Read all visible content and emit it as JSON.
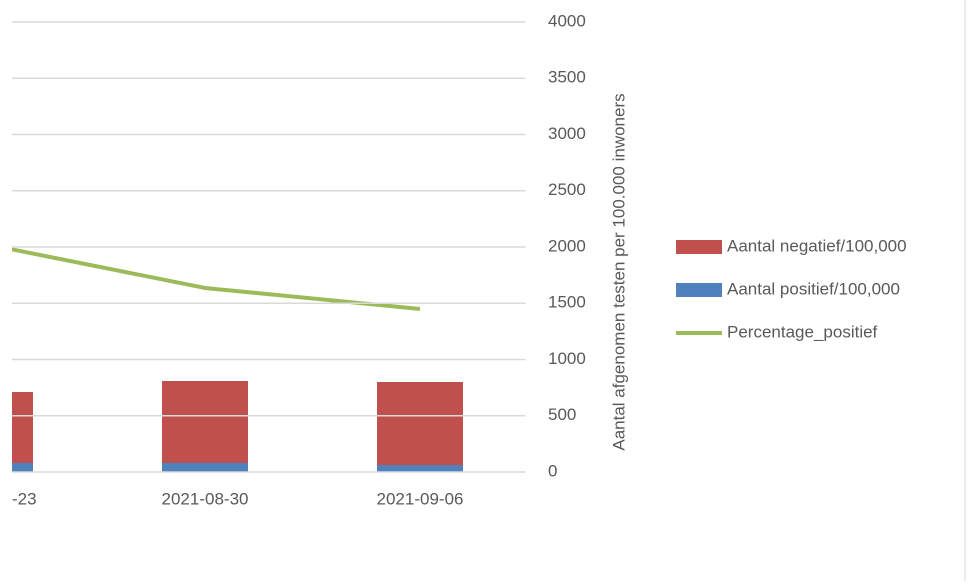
{
  "chart_data": {
    "type": "stacked-bar-line",
    "categories": [
      "-23",
      "2021-08-30",
      "2021-09-06"
    ],
    "series": [
      {
        "name": "Aantal negatief/100,000",
        "color": "#c0504d",
        "kind": "bar",
        "values": [
          631,
          729,
          738
        ]
      },
      {
        "name": "Aantal positief/100,000",
        "color": "#4f81bd",
        "kind": "bar",
        "values": [
          80,
          80,
          62
        ]
      },
      {
        "name": "Percentage_positief",
        "color": "#9bbb59",
        "kind": "line",
        "values": [
          2018,
          1636,
          1449
        ]
      }
    ],
    "ylabel": "Aantal afgenomen testen per 100.000 inwoners",
    "ylim": [
      0,
      4000
    ],
    "yticks": [
      0,
      500,
      1000,
      1500,
      2000,
      2500,
      3000,
      3500,
      4000
    ],
    "grid": true,
    "legend": "right"
  }
}
